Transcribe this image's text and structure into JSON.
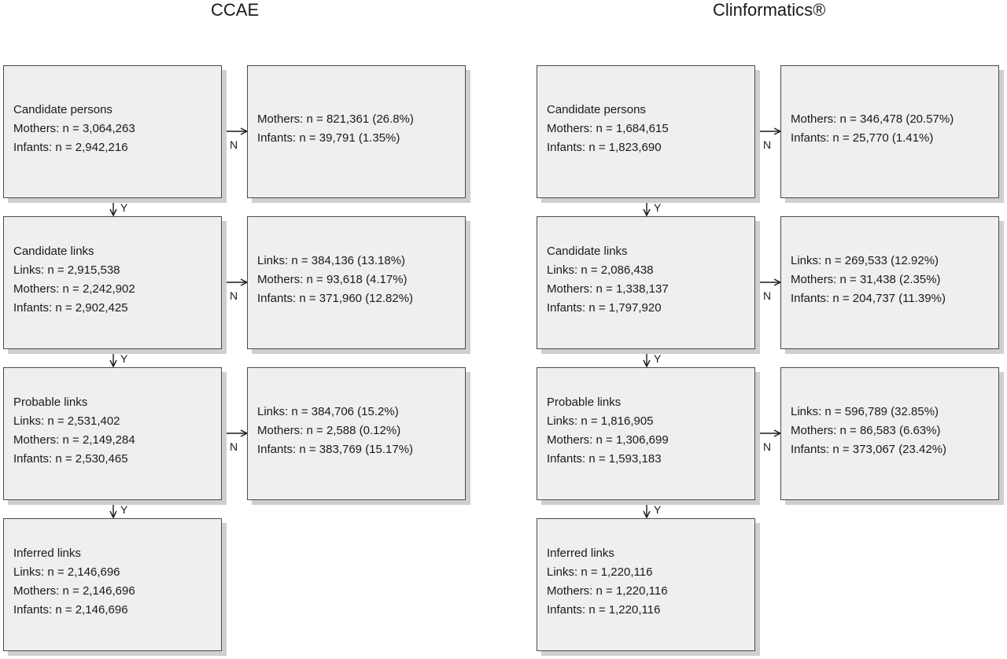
{
  "titles": {
    "left": "CCAE",
    "right": "Clinformatics®"
  },
  "labels": {
    "yes": "Y",
    "no": "N"
  },
  "ccae": {
    "main": [
      {
        "heading": "Candidate persons",
        "lines": [
          "Mothers: n = 3,064,263",
          "Infants: n = 2,942,216"
        ]
      },
      {
        "heading": "Candidate links",
        "lines": [
          "Links: n = 2,915,538",
          "Mothers: n = 2,242,902",
          "Infants: n = 2,902,425"
        ]
      },
      {
        "heading": "Probable links",
        "lines": [
          "Links: n = 2,531,402",
          "Mothers: n = 2,149,284",
          "Infants: n = 2,530,465"
        ]
      },
      {
        "heading": "Inferred links",
        "lines": [
          "Links: n = 2,146,696",
          "Mothers: n = 2,146,696",
          "Infants: n = 2,146,696"
        ]
      }
    ],
    "excluded": [
      {
        "lines": [
          "Mothers: n = 821,361 (26.8%)",
          "Infants: n = 39,791 (1.35%)"
        ]
      },
      {
        "lines": [
          "Links: n = 384,136 (13.18%)",
          "Mothers: n = 93,618 (4.17%)",
          "Infants: n = 371,960 (12.82%)"
        ]
      },
      {
        "lines": [
          "Links: n = 384,706 (15.2%)",
          "Mothers: n = 2,588 (0.12%)",
          "Infants: n = 383,769 (15.17%)"
        ]
      }
    ]
  },
  "clinformatics": {
    "main": [
      {
        "heading": "Candidate persons",
        "lines": [
          "Mothers: n = 1,684,615",
          "Infants: n = 1,823,690"
        ]
      },
      {
        "heading": "Candidate links",
        "lines": [
          "Links: n = 2,086,438",
          "Mothers: n = 1,338,137",
          "Infants: n = 1,797,920"
        ]
      },
      {
        "heading": "Probable links",
        "lines": [
          "Links: n = 1,816,905",
          "Mothers: n = 1,306,699",
          "Infants: n = 1,593,183"
        ]
      },
      {
        "heading": "Inferred links",
        "lines": [
          "Links: n = 1,220,116",
          "Mothers: n = 1,220,116",
          "Infants: n = 1,220,116"
        ]
      }
    ],
    "excluded": [
      {
        "lines": [
          "Mothers: n = 346,478 (20.57%)",
          "Infants: n = 25,770 (1.41%)"
        ]
      },
      {
        "lines": [
          "Links: n = 269,533 (12.92%)",
          "Mothers: n = 31,438 (2.35%)",
          "Infants: n = 204,737 (11.39%)"
        ]
      },
      {
        "lines": [
          "Links: n = 596,789 (32.85%)",
          "Mothers: n = 86,583 (6.63%)",
          "Infants: n = 373,067 (23.42%)"
        ]
      }
    ]
  }
}
